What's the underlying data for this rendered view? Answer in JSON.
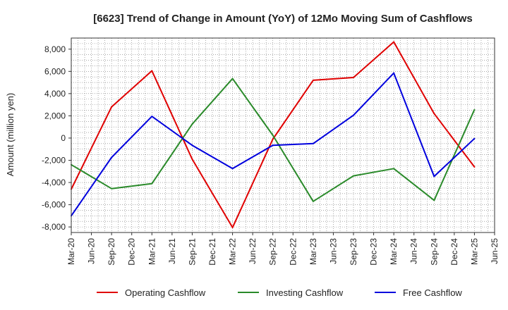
{
  "chart_data": {
    "type": "line",
    "title": "[6623]  Trend of Change in Amount (YoY) of 12Mo Moving Sum of Cashflows",
    "xlabel": "",
    "ylabel": "Amount (million yen)",
    "ylim": [
      -8500,
      9000
    ],
    "yticks": [
      -8000,
      -6000,
      -4000,
      -2000,
      0,
      2000,
      4000,
      6000,
      8000
    ],
    "ytick_labels": [
      "-8,000",
      "-6,000",
      "-4,000",
      "-2,000",
      "0",
      "2,000",
      "4,000",
      "6,000",
      "8,000"
    ],
    "grid": true,
    "legend_position": "bottom",
    "x_tick_labels": [
      "Mar-20",
      "Jun-20",
      "Sep-20",
      "Dec-20",
      "Mar-21",
      "Jun-21",
      "Sep-21",
      "Dec-21",
      "Mar-22",
      "Jun-22",
      "Sep-22",
      "Dec-22",
      "Mar-23",
      "Jun-23",
      "Sep-23",
      "Dec-23",
      "Mar-24",
      "Jun-24",
      "Sep-24",
      "Dec-24",
      "Mar-25",
      "Jun-25"
    ],
    "series": [
      {
        "name": "Operating Cashflow",
        "color": "#e00000",
        "x": [
          "Mar-20",
          "Sep-20",
          "Mar-21",
          "Sep-21",
          "Mar-22",
          "Sep-22",
          "Mar-23",
          "Sep-23",
          "Mar-24",
          "Sep-24",
          "Mar-25"
        ],
        "values": [
          -4600,
          2800,
          6050,
          -1900,
          -8050,
          -100,
          5200,
          5450,
          8650,
          2200,
          -2600
        ]
      },
      {
        "name": "Investing Cashflow",
        "color": "#2a8a2a",
        "x": [
          "Mar-20",
          "Sep-20",
          "Mar-21",
          "Sep-21",
          "Mar-22",
          "Sep-22",
          "Mar-23",
          "Sep-23",
          "Mar-24",
          "Sep-24",
          "Mar-25"
        ],
        "values": [
          -2400,
          -4550,
          -4100,
          1250,
          5350,
          250,
          -5700,
          -3400,
          -2750,
          -5600,
          2550
        ]
      },
      {
        "name": "Free Cashflow",
        "color": "#0000dd",
        "x": [
          "Mar-20",
          "Sep-20",
          "Mar-21",
          "Sep-21",
          "Mar-22",
          "Sep-22",
          "Mar-23",
          "Sep-23",
          "Mar-24",
          "Sep-24",
          "Mar-25"
        ],
        "values": [
          -7000,
          -1750,
          1950,
          -650,
          -2750,
          -650,
          -500,
          2050,
          5850,
          -3450,
          -50
        ]
      }
    ]
  }
}
